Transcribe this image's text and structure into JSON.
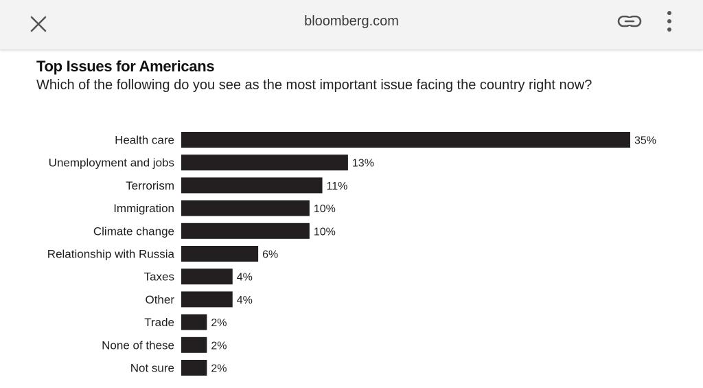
{
  "browser": {
    "url": "bloomberg.com",
    "close_icon": "close-icon",
    "link_icon": "link-icon",
    "menu_icon": "more-vertical-icon"
  },
  "chart_data": {
    "type": "bar",
    "orientation": "horizontal",
    "title": "Top Issues for Americans",
    "subtitle": "Which of the following do you see as the most important issue facing the country right now?",
    "categories": [
      "Health care",
      "Unemployment and jobs",
      "Terrorism",
      "Immigration",
      "Climate change",
      "Relationship with Russia",
      "Taxes",
      "Other",
      "Trade",
      "None of these",
      "Not sure"
    ],
    "values": [
      35,
      13,
      11,
      10,
      10,
      6,
      4,
      4,
      2,
      2,
      2
    ],
    "value_labels": [
      "35%",
      "13%",
      "11%",
      "10%",
      "10%",
      "6%",
      "4%",
      "4%",
      "2%",
      "2%",
      "2%"
    ],
    "unit": "%",
    "xlim": [
      0,
      35
    ],
    "grid": false,
    "legend": "none",
    "bar_color": "#231f20"
  }
}
